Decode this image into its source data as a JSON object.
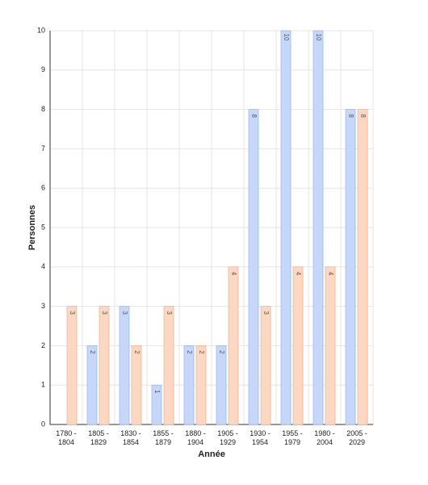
{
  "chart_data": {
    "type": "bar",
    "categories": [
      "1780 - 1804",
      "1805 - 1829",
      "1830 - 1854",
      "1855 - 1879",
      "1880 - 1904",
      "1905 - 1929",
      "1930 - 1954",
      "1955 - 1979",
      "1980 - 2004",
      "2005 - 2029"
    ],
    "series": [
      {
        "color": "#c5d8fb",
        "values": [
          null,
          2,
          3,
          1,
          2,
          2,
          8,
          10,
          10,
          8
        ]
      },
      {
        "color": "#fcd8c3",
        "values": [
          3,
          3,
          2,
          3,
          2,
          4,
          3,
          4,
          4,
          8
        ]
      }
    ],
    "ylim": [
      0,
      10
    ],
    "yticks": [
      0,
      1,
      2,
      3,
      4,
      5,
      6,
      7,
      8,
      9,
      10
    ],
    "grid": true,
    "x_label": "Année",
    "y_label": "Personnes"
  }
}
